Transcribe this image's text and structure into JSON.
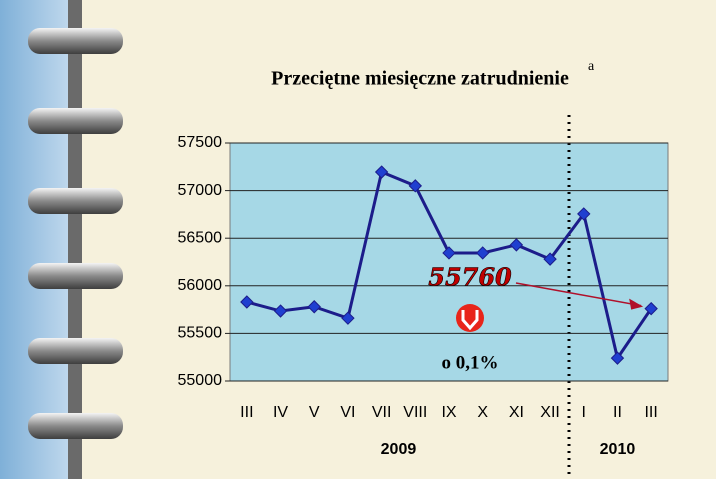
{
  "chart_data": {
    "type": "line",
    "title": "Przeciętne miesięczne zatrudnienie",
    "title_note": "a",
    "categories": [
      "III",
      "IV",
      "V",
      "VI",
      "VII",
      "VIII",
      "IX",
      "X",
      "XI",
      "XII",
      "I",
      "II",
      "III"
    ],
    "values": [
      55830,
      55735,
      55780,
      55660,
      57195,
      57050,
      56345,
      56345,
      56430,
      56280,
      56755,
      55240,
      55760
    ],
    "color": "#1c1c8a",
    "marker_color": "#1f3fd0",
    "ylim": [
      55000,
      57500
    ],
    "yticks": [
      55000,
      55500,
      56000,
      56500,
      57000,
      57500
    ],
    "grid": true,
    "callout": 55760,
    "change_label": "o 0,1%",
    "groups": [
      "2009",
      "2010"
    ]
  }
}
